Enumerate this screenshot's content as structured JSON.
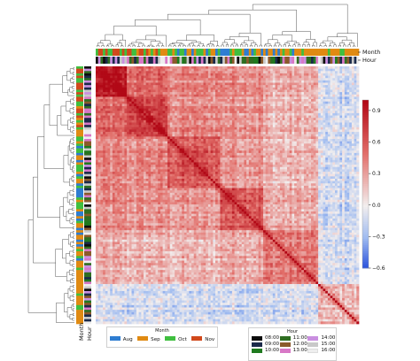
{
  "chart_data": {
    "type": "heatmap",
    "subtype": "clustered correlation matrix",
    "title": "",
    "colorbar": {
      "vmin": -0.6,
      "vmax": 1.0,
      "ticks": [
        "0.9",
        "0.6",
        "0.3",
        "0.0",
        "−0.3",
        "−0.6"
      ],
      "tick_values": [
        0.9,
        0.6,
        0.3,
        0.0,
        -0.3,
        -0.6
      ],
      "colormap": "coolwarm (blue negative, white zero, red positive)"
    },
    "cluster_blocks": [
      {
        "from": 0.0,
        "to": 0.11,
        "mean": 0.85
      },
      {
        "from": 0.11,
        "to": 0.27,
        "mean": 0.72
      },
      {
        "from": 0.27,
        "to": 0.47,
        "mean": 0.6
      },
      {
        "from": 0.47,
        "to": 0.63,
        "mean": 0.65
      },
      {
        "from": 0.63,
        "to": 0.84,
        "mean": 0.45
      },
      {
        "from": 0.84,
        "to": 1.0,
        "mean": 0.2
      }
    ],
    "annotation_tracks": {
      "col_labels": [
        "Month",
        "Hour"
      ],
      "row_labels": [
        "Month",
        "Hour"
      ]
    },
    "legends": {
      "month": {
        "title": "Month",
        "items": [
          {
            "label": "Aug",
            "color": "#2e7dd1"
          },
          {
            "label": "Sep",
            "color": "#e08a12"
          },
          {
            "label": "Oct",
            "color": "#3fbf3f"
          },
          {
            "label": "Nov",
            "color": "#d1491c"
          }
        ]
      },
      "hour": {
        "title": "Hour",
        "items": [
          {
            "label": "08:00",
            "color": "#0d0d0d"
          },
          {
            "label": "11:00",
            "color": "#2f6e22"
          },
          {
            "label": "14:00",
            "color": "#c98fe0"
          },
          {
            "label": "09:00",
            "color": "#1b2a4a"
          },
          {
            "label": "12:00",
            "color": "#8b5a2b"
          },
          {
            "label": "15:00",
            "color": "#c9c9c9"
          },
          {
            "label": "10:00",
            "color": "#1f7a1f"
          },
          {
            "label": "13:00",
            "color": "#d878c6"
          },
          {
            "label": "16:00",
            "color": "#eeeeee"
          }
        ]
      }
    }
  }
}
